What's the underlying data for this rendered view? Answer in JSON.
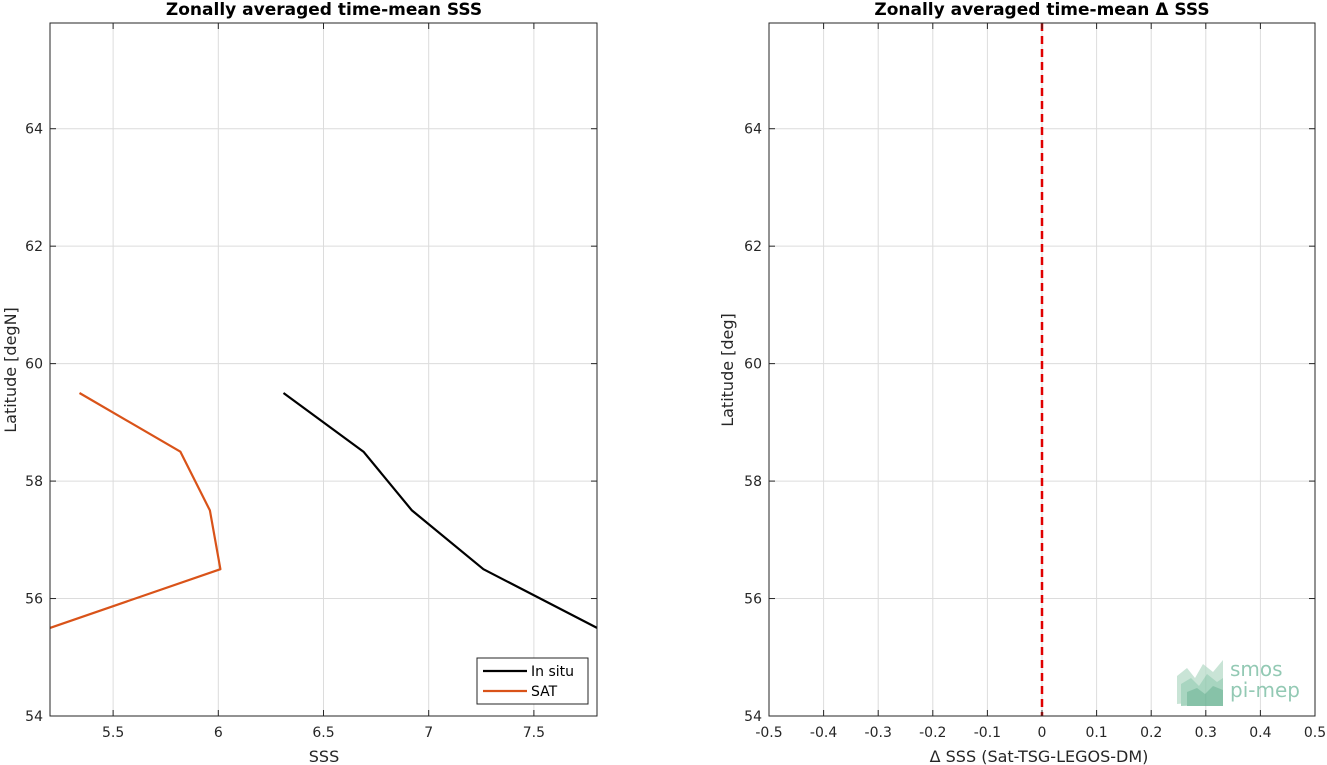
{
  "chart_data": [
    {
      "type": "line",
      "title": "Zonally averaged time-mean SSS",
      "xlabel": "SSS",
      "ylabel": "Latitude [degN]",
      "xlim": [
        5.2,
        7.8
      ],
      "ylim": [
        54,
        65.8
      ],
      "xticks": [
        5.5,
        6,
        6.5,
        7,
        7.5
      ],
      "xtick_labels": [
        "5.5",
        "6",
        "6.5",
        "7",
        "7.5"
      ],
      "yticks": [
        54,
        56,
        58,
        60,
        62,
        64
      ],
      "ytick_labels": [
        "54",
        "56",
        "58",
        "60",
        "62",
        "64"
      ],
      "grid": true,
      "legend": "bottom-right",
      "series": [
        {
          "name": "In situ",
          "color": "#000000",
          "x": [
            6.31,
            6.69,
            6.92,
            7.26,
            7.8
          ],
          "y": [
            59.5,
            58.5,
            57.5,
            56.5,
            55.5
          ]
        },
        {
          "name": "SAT",
          "color": "#d95319",
          "x": [
            5.34,
            5.82,
            5.96,
            6.01,
            5.2
          ],
          "y": [
            59.5,
            58.5,
            57.5,
            56.5,
            55.5
          ]
        }
      ]
    },
    {
      "type": "line",
      "title": "Zonally averaged time-mean Δ SSS",
      "xlabel": "Δ SSS (Sat-TSG-LEGOS-DM)",
      "ylabel": "Latitude [deg]",
      "xlim": [
        -0.5,
        0.5
      ],
      "ylim": [
        54,
        65.8
      ],
      "xticks": [
        -0.5,
        -0.4,
        -0.3,
        -0.2,
        -0.1,
        0,
        0.1,
        0.2,
        0.3,
        0.4,
        0.5
      ],
      "xtick_labels": [
        "-0.5",
        "-0.4",
        "-0.3",
        "-0.2",
        "-0.1",
        "0",
        "0.1",
        "0.2",
        "0.3",
        "0.4",
        "0.5"
      ],
      "yticks": [
        54,
        56,
        58,
        60,
        62,
        64
      ],
      "ytick_labels": [
        "54",
        "56",
        "58",
        "60",
        "62",
        "64"
      ],
      "grid": true,
      "reference_line": {
        "x": 0,
        "color": "#e00000",
        "style": "dashed"
      }
    }
  ],
  "watermark": {
    "line1": "smos",
    "line2": "pi-mep",
    "color": "#6fb89b"
  }
}
